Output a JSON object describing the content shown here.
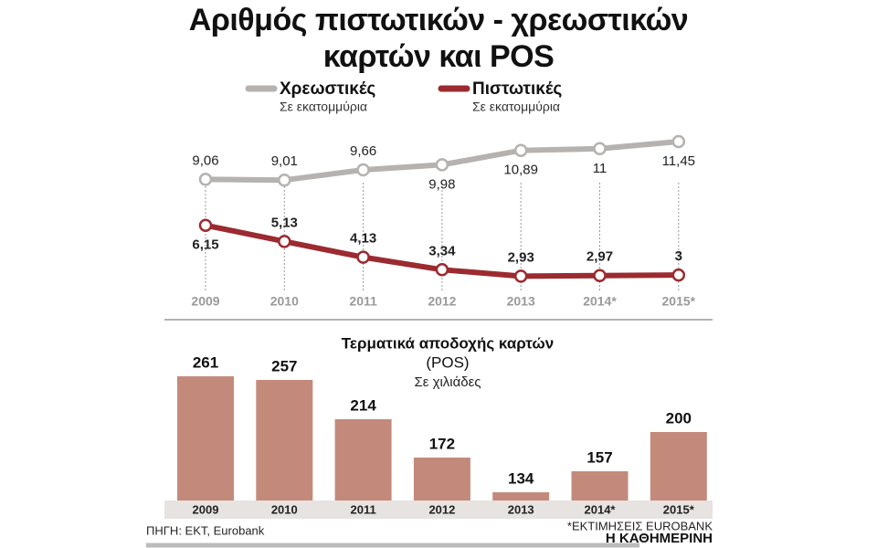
{
  "chart_data": [
    {
      "type": "line",
      "title": "Αριθμός πιστωτικών - χρεωστικών καρτών και POS",
      "categories": [
        "2009",
        "2010",
        "2011",
        "2012",
        "2013",
        "2014*",
        "2015*"
      ],
      "series": [
        {
          "name": "Χρεωστικές",
          "unit": "Σε εκατομμύρια",
          "color": "#b5b2b0",
          "values": [
            9.06,
            9.01,
            9.66,
            9.98,
            10.89,
            11,
            11.45
          ],
          "value_labels": [
            "9,06",
            "9,01",
            "9,66",
            "9,98",
            "10,89",
            "11",
            "11,45"
          ]
        },
        {
          "name": "Πιστωτικές",
          "unit": "Σε εκατομμύρια",
          "color": "#9b2b30",
          "values": [
            6.15,
            5.13,
            4.13,
            3.34,
            2.93,
            2.97,
            3
          ],
          "value_labels": [
            "6,15",
            "5,13",
            "4,13",
            "3,34",
            "2,93",
            "2,97",
            "3"
          ]
        }
      ]
    },
    {
      "type": "bar",
      "title": "Τερματικά αποδοχής καρτών",
      "subtitle": "(POS)",
      "unit": "Σε χιλιάδες",
      "categories": [
        "2009",
        "2010",
        "2011",
        "2012",
        "2013",
        "2014*",
        "2015*"
      ],
      "values": [
        261,
        257,
        214,
        172,
        134,
        157,
        200
      ],
      "color": "#c38a7b"
    }
  ],
  "source": "ΠΗΓΗ: ΕΚΤ, Eurobank",
  "note": "*ΕΚΤΙΜΗΣΕΙΣ EUROBANK",
  "publisher": "Η ΚΑΘΗΜΕΡΙΝΗ"
}
